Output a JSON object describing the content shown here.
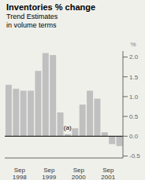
{
  "chart_data": {
    "type": "bar",
    "title": "Inventories % change",
    "subtitle": [
      "Trend Estimates",
      "in volume terms"
    ],
    "ylabel": "%",
    "categories": [
      null,
      "Sep\n1998",
      null,
      null,
      null,
      "Sep\n1999",
      null,
      null,
      null,
      "Sep\n2000",
      null,
      null,
      null,
      "Sep\n2001",
      null,
      null
    ],
    "values": [
      1.3,
      1.2,
      1.15,
      1.15,
      1.65,
      2.1,
      2.05,
      0.6,
      0.05,
      0.2,
      0.8,
      1.15,
      0.95,
      0.1,
      -0.2,
      -0.25
    ],
    "color": "#c0c0c0",
    "ylim": [
      -0.55,
      2.15
    ],
    "yticks": [
      -0.5,
      {
        "value": 0,
        "label": "0.0"
      },
      0.5,
      {
        "value": 1,
        "label": "1.0"
      },
      1.5,
      {
        "value": 2,
        "label": "2.0"
      }
    ],
    "annotations": [
      {
        "text": "(a)",
        "x": 8,
        "y": 0.07
      }
    ],
    "grid": false
  }
}
